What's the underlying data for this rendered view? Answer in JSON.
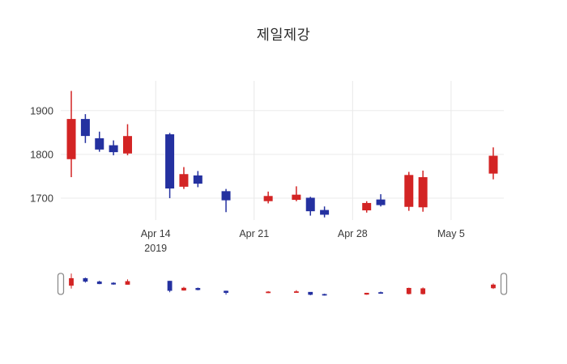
{
  "title": "제일제강",
  "chart_data": {
    "type": "candlestick",
    "title": "제일제강",
    "xlabel": "",
    "ylabel": "",
    "grid": true,
    "legend": false,
    "rangeslider": true,
    "colors": {
      "increasing": "#d32424",
      "decreasing": "#2431a0"
    },
    "yaxis": {
      "min": 1650,
      "max": 1968
    },
    "yticks": [
      1700,
      1800,
      1900
    ],
    "xaxis": {
      "start": "2019-04-07T06:00:00Z",
      "end": "2019-05-08T18:00:00Z"
    },
    "xticks": [
      {
        "date": "2019-04-14",
        "label": "Apr 14",
        "sublabel": "2019"
      },
      {
        "date": "2019-04-21",
        "label": "Apr 21",
        "sublabel": ""
      },
      {
        "date": "2019-04-28",
        "label": "Apr 28",
        "sublabel": ""
      },
      {
        "date": "2019-05-05",
        "label": "May 5",
        "sublabel": ""
      }
    ],
    "candles": [
      {
        "date": "2019-04-08",
        "open": 1790,
        "high": 1945,
        "low": 1748,
        "close": 1880
      },
      {
        "date": "2019-04-09",
        "open": 1880,
        "high": 1892,
        "low": 1826,
        "close": 1843
      },
      {
        "date": "2019-04-10",
        "open": 1836,
        "high": 1852,
        "low": 1806,
        "close": 1812
      },
      {
        "date": "2019-04-11",
        "open": 1820,
        "high": 1832,
        "low": 1798,
        "close": 1806
      },
      {
        "date": "2019-04-12",
        "open": 1803,
        "high": 1869,
        "low": 1798,
        "close": 1841
      },
      {
        "date": "2019-04-15",
        "open": 1845,
        "high": 1849,
        "low": 1700,
        "close": 1723
      },
      {
        "date": "2019-04-16",
        "open": 1727,
        "high": 1771,
        "low": 1721,
        "close": 1754
      },
      {
        "date": "2019-04-17",
        "open": 1751,
        "high": 1762,
        "low": 1725,
        "close": 1734
      },
      {
        "date": "2019-04-19",
        "open": 1715,
        "high": 1721,
        "low": 1668,
        "close": 1696
      },
      {
        "date": "2019-04-22",
        "open": 1694,
        "high": 1715,
        "low": 1688,
        "close": 1704
      },
      {
        "date": "2019-04-24",
        "open": 1697,
        "high": 1727,
        "low": 1693,
        "close": 1707
      },
      {
        "date": "2019-04-25",
        "open": 1700,
        "high": 1703,
        "low": 1660,
        "close": 1671
      },
      {
        "date": "2019-04-26",
        "open": 1672,
        "high": 1681,
        "low": 1656,
        "close": 1663
      },
      {
        "date": "2019-04-29",
        "open": 1673,
        "high": 1693,
        "low": 1667,
        "close": 1688
      },
      {
        "date": "2019-04-30",
        "open": 1696,
        "high": 1709,
        "low": 1681,
        "close": 1685
      },
      {
        "date": "2019-05-02",
        "open": 1681,
        "high": 1760,
        "low": 1671,
        "close": 1752
      },
      {
        "date": "2019-05-03",
        "open": 1680,
        "high": 1763,
        "low": 1669,
        "close": 1747
      },
      {
        "date": "2019-05-08",
        "open": 1757,
        "high": 1816,
        "low": 1743,
        "close": 1796
      }
    ]
  }
}
